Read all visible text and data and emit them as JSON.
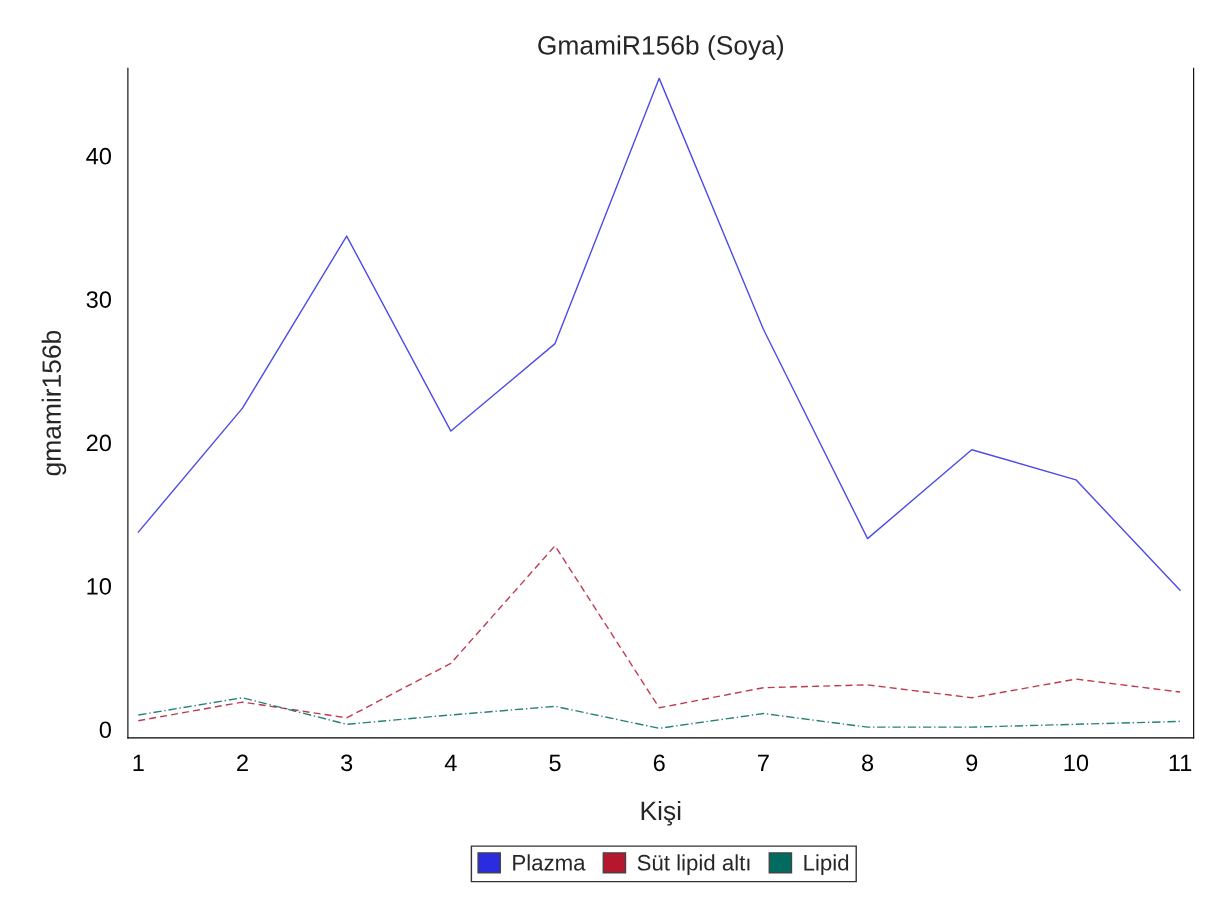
{
  "chart_data": {
    "type": "line",
    "title": "GmamiR156b (Soya)",
    "xlabel": "Kişi",
    "ylabel": "gmamir156b",
    "x": [
      1,
      2,
      3,
      4,
      5,
      6,
      7,
      8,
      9,
      10,
      11
    ],
    "series": [
      {
        "name": "Plazma",
        "color": "#2b2be0",
        "line_style": "solid",
        "values": [
          13.75,
          22.4,
          34.4,
          20.8,
          26.9,
          45.4,
          27.9,
          13.3,
          19.5,
          17.4,
          9.7
        ]
      },
      {
        "name": "Süt lipid altı",
        "color": "#b5182e",
        "line_style": "dashed",
        "values": [
          0.6,
          1.9,
          0.8,
          4.6,
          12.8,
          1.5,
          2.9,
          3.1,
          2.2,
          3.5,
          2.6
        ]
      },
      {
        "name": "Lipid",
        "color": "#006b5e",
        "line_style": "dotted",
        "values": [
          1.0,
          2.2,
          0.35,
          1.0,
          1.6,
          0.07,
          1.1,
          0.15,
          0.15,
          0.35,
          0.55
        ]
      }
    ],
    "xlim": [
      0.9,
      11.13
    ],
    "ylim": [
      -0.6,
      46.1
    ],
    "xticks": [
      1,
      2,
      3,
      4,
      5,
      6,
      7,
      8,
      9,
      10,
      11
    ],
    "yticks": [
      0,
      10,
      20,
      30,
      40
    ],
    "grid": false,
    "legend": "bottom",
    "marker": "none"
  }
}
